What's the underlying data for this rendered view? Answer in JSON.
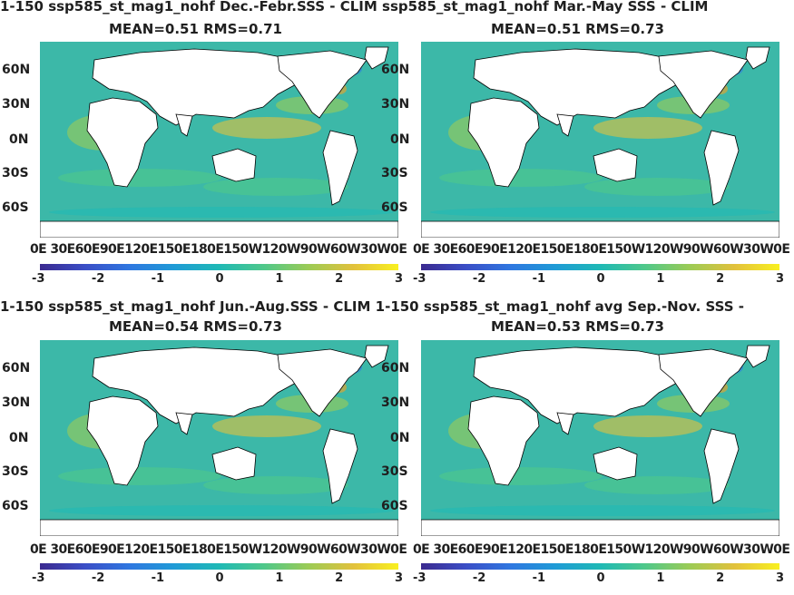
{
  "figure": {
    "row1_title": "1-150 ssp585_st_mag1_nohf  Dec.-Febr.SSS - CLIM  ssp585_st_mag1_nohf Mar.-May SSS - CLIM",
    "row2_title": "1-150 ssp585_st_mag1_nohf Jun.-Aug.SSS - CLIM  1-150 ssp585_st_mag1_nohf avg Sep.-Nov. SSS -",
    "panels": [
      {
        "id": "djf",
        "stats": "MEAN=0.51   RMS=0.71"
      },
      {
        "id": "mam",
        "stats": "MEAN=0.51   RMS=0.73"
      },
      {
        "id": "jja",
        "stats": "MEAN=0.54   RMS=0.73"
      },
      {
        "id": "son",
        "stats": "MEAN=0.53   RMS=0.73"
      }
    ],
    "lat_ticks": [
      "60N",
      "30N",
      "0N",
      "30S",
      "60S"
    ],
    "lon_tick_line": "0E 30E60E90E120E150E180E150W120W90W60W30W0E",
    "colorbar_ticks": [
      "-3",
      "-2",
      "-1",
      "0",
      "1",
      "2",
      "3"
    ],
    "colormap": [
      "#3b2a8f",
      "#3b4ec6",
      "#2f77e0",
      "#1f9bd6",
      "#1fb9b5",
      "#4fc88a",
      "#9ccb55",
      "#e2c13c",
      "#f9f020"
    ],
    "ocean_base_color": "#3cb8a8",
    "land_color": "#ffffff"
  }
}
